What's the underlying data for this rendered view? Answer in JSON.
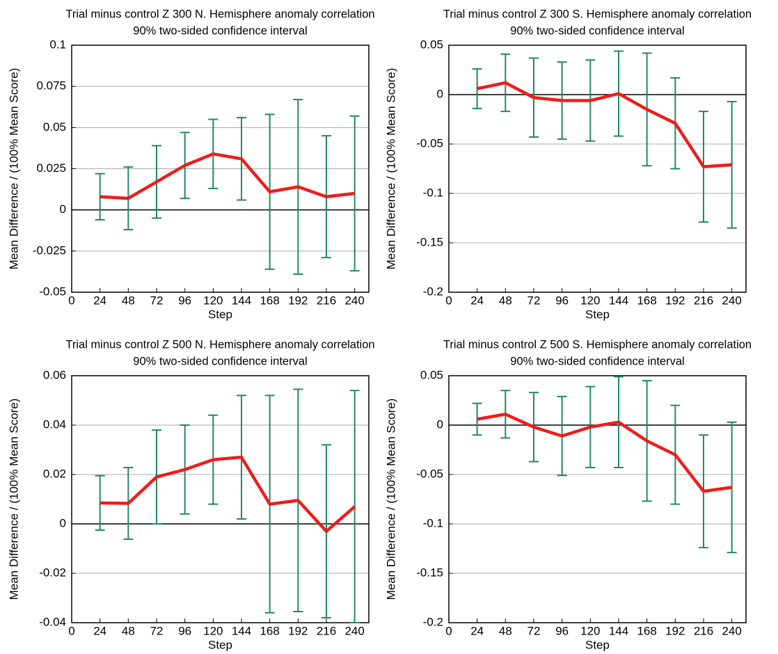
{
  "chart_data": [
    {
      "type": "line",
      "title": "Trial minus control Z 300 N. Hemisphere anomaly correlation",
      "subtitle": "90% two-sided confidence interval",
      "x_label": "Step",
      "y_label": "Mean Difference / (100% Mean Score)",
      "x": [
        24,
        48,
        72,
        96,
        120,
        144,
        168,
        192,
        216,
        240
      ],
      "values": [
        0.008,
        0.007,
        0.017,
        0.027,
        0.034,
        0.031,
        0.011,
        0.014,
        0.008,
        0.01
      ],
      "errors": [
        0.014,
        0.019,
        0.022,
        0.02,
        0.021,
        0.025,
        0.047,
        0.053,
        0.037,
        0.047
      ],
      "line_color": "#ee1c1c",
      "error_color": "#1f8a5e",
      "xlim": [
        0,
        252
      ],
      "xticks": [
        0,
        24,
        48,
        72,
        96,
        120,
        144,
        168,
        192,
        216,
        240
      ],
      "ylim": [
        -0.05,
        0.1
      ],
      "yticks": [
        -0.05,
        -0.025,
        0,
        0.025,
        0.05,
        0.075,
        0.1
      ],
      "grid": true
    },
    {
      "type": "line",
      "title": "Trial minus control Z 300 S. Hemisphere anomaly correlation",
      "subtitle": "90% two-sided confidence interval",
      "x_label": "Step",
      "y_label": "Mean Difference / (100% Mean Score)",
      "x": [
        24,
        48,
        72,
        96,
        120,
        144,
        168,
        192,
        216,
        240
      ],
      "values": [
        0.006,
        0.012,
        -0.003,
        -0.006,
        -0.006,
        0.001,
        -0.015,
        -0.029,
        -0.073,
        -0.071
      ],
      "errors": [
        0.02,
        0.029,
        0.04,
        0.039,
        0.041,
        0.043,
        0.057,
        0.046,
        0.056,
        0.064
      ],
      "line_color": "#ee1c1c",
      "error_color": "#1f8a5e",
      "xlim": [
        0,
        252
      ],
      "xticks": [
        0,
        24,
        48,
        72,
        96,
        120,
        144,
        168,
        192,
        216,
        240
      ],
      "ylim": [
        -0.2,
        0.05
      ],
      "yticks": [
        -0.2,
        -0.15,
        -0.1,
        -0.05,
        0,
        0.05
      ],
      "grid": true
    },
    {
      "type": "line",
      "title": "Trial minus control Z 500 N. Hemisphere anomaly correlation",
      "subtitle": "90% two-sided confidence interval",
      "x_label": "Step",
      "y_label": "Mean Difference / (100% Mean Score)",
      "x": [
        24,
        48,
        72,
        96,
        120,
        144,
        168,
        192,
        216,
        240
      ],
      "values": [
        0.0085,
        0.0083,
        0.019,
        0.022,
        0.026,
        0.027,
        0.008,
        0.0095,
        -0.003,
        0.007
      ],
      "errors": [
        0.011,
        0.0145,
        0.019,
        0.018,
        0.018,
        0.025,
        0.044,
        0.045,
        0.035,
        0.047
      ],
      "line_color": "#ee1c1c",
      "error_color": "#1f8a5e",
      "xlim": [
        0,
        252
      ],
      "xticks": [
        0,
        24,
        48,
        72,
        96,
        120,
        144,
        168,
        192,
        216,
        240
      ],
      "ylim": [
        -0.04,
        0.06
      ],
      "yticks": [
        -0.04,
        -0.02,
        0,
        0.02,
        0.04,
        0.06
      ],
      "grid": true
    },
    {
      "type": "line",
      "title": "Trial minus control Z 500 S. Hemisphere anomaly correlation",
      "subtitle": "90% two-sided confidence interval",
      "x_label": "Step",
      "y_label": "Mean Difference / (100% Mean Score)",
      "x": [
        24,
        48,
        72,
        96,
        120,
        144,
        168,
        192,
        216,
        240
      ],
      "values": [
        0.006,
        0.011,
        -0.002,
        -0.011,
        -0.002,
        0.003,
        -0.016,
        -0.03,
        -0.067,
        -0.063
      ],
      "errors": [
        0.016,
        0.024,
        0.035,
        0.04,
        0.041,
        0.046,
        0.061,
        0.05,
        0.057,
        0.066
      ],
      "line_color": "#ee1c1c",
      "error_color": "#1f8a5e",
      "xlim": [
        0,
        252
      ],
      "xticks": [
        0,
        24,
        48,
        72,
        96,
        120,
        144,
        168,
        192,
        216,
        240
      ],
      "ylim": [
        -0.2,
        0.05
      ],
      "yticks": [
        -0.2,
        -0.15,
        -0.1,
        -0.05,
        0,
        0.05
      ],
      "grid": true
    }
  ]
}
